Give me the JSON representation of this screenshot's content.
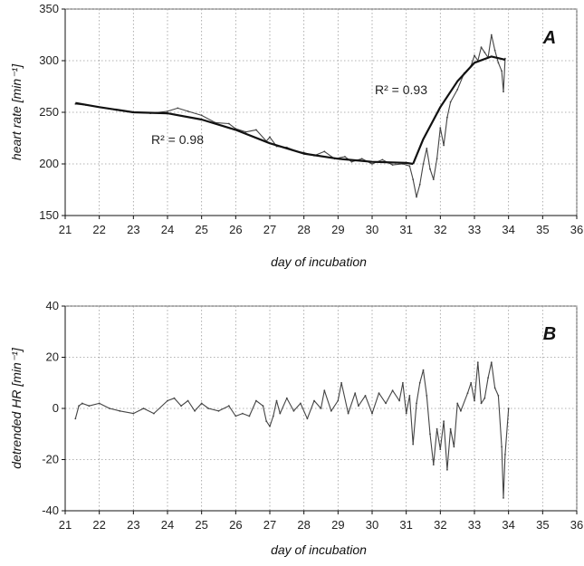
{
  "chart_data": [
    {
      "panel": "A",
      "type": "line",
      "xlabel": "day of incubation",
      "ylabel": "heart rate [min⁻¹]",
      "xlim": [
        21,
        36
      ],
      "ylim": [
        150,
        350
      ],
      "xticks": [
        21,
        22,
        23,
        24,
        25,
        26,
        27,
        28,
        29,
        30,
        31,
        32,
        33,
        34,
        35,
        36
      ],
      "yticks": [
        150,
        200,
        250,
        300,
        350
      ],
      "grid": true,
      "annotations": [
        "R² = 0.98",
        "R² = 0.93"
      ],
      "series": [
        {
          "role": "measured",
          "x": [
            21.3,
            21.6,
            22.0,
            22.5,
            23.0,
            23.5,
            24.0,
            24.3,
            24.6,
            25.0,
            25.4,
            25.8,
            26.0,
            26.3,
            26.6,
            26.9,
            27.0,
            27.2,
            27.5,
            27.8,
            28.0,
            28.3,
            28.6,
            28.9,
            29.2,
            29.4,
            29.7,
            30.0,
            30.3,
            30.6,
            30.9,
            31.1,
            31.2,
            31.3,
            31.4,
            31.5,
            31.6,
            31.7,
            31.8,
            31.9,
            32.0,
            32.1,
            32.2,
            32.3,
            32.5,
            32.7,
            32.9,
            33.0,
            33.1,
            33.2,
            33.3,
            33.4,
            33.5,
            33.6,
            33.7,
            33.8,
            33.85,
            33.9
          ],
          "y": [
            258,
            257,
            255,
            252,
            250,
            249,
            251,
            254,
            251,
            247,
            240,
            239,
            234,
            231,
            233,
            222,
            226,
            217,
            216,
            212,
            211,
            208,
            212,
            205,
            207,
            202,
            205,
            200,
            204,
            199,
            200,
            198,
            185,
            168,
            180,
            200,
            215,
            195,
            185,
            205,
            235,
            218,
            245,
            260,
            272,
            288,
            295,
            305,
            300,
            313,
            308,
            303,
            325,
            310,
            298,
            290,
            270,
            302
          ]
        },
        {
          "role": "fit",
          "x": [
            21.3,
            22.0,
            23.0,
            24.0,
            25.0,
            26.0,
            27.0,
            28.0,
            29.0,
            30.0,
            31.0,
            31.2
          ],
          "y": [
            259,
            255,
            250,
            249,
            243,
            233,
            220,
            210,
            205,
            202,
            201,
            200
          ]
        },
        {
          "role": "fit",
          "x": [
            31.2,
            31.5,
            32.0,
            32.5,
            33.0,
            33.5,
            33.9
          ],
          "y": [
            200,
            224,
            255,
            280,
            298,
            304,
            301
          ]
        }
      ]
    },
    {
      "panel": "B",
      "type": "line",
      "xlabel": "day of incubation",
      "ylabel": "detrended HR [min⁻¹]",
      "xlim": [
        21,
        36
      ],
      "ylim": [
        -40,
        40
      ],
      "xticks": [
        21,
        22,
        23,
        24,
        25,
        26,
        27,
        28,
        29,
        30,
        31,
        32,
        33,
        34,
        35,
        36
      ],
      "yticks": [
        -40,
        -20,
        0,
        20,
        40
      ],
      "grid": true,
      "series": [
        {
          "role": "residual",
          "x": [
            21.3,
            21.4,
            21.5,
            21.7,
            22.0,
            22.3,
            22.6,
            23.0,
            23.3,
            23.6,
            24.0,
            24.2,
            24.4,
            24.6,
            24.8,
            25.0,
            25.2,
            25.5,
            25.8,
            26.0,
            26.2,
            26.4,
            26.6,
            26.8,
            26.9,
            27.0,
            27.1,
            27.2,
            27.3,
            27.5,
            27.7,
            27.9,
            28.1,
            28.3,
            28.5,
            28.6,
            28.8,
            29.0,
            29.1,
            29.3,
            29.5,
            29.6,
            29.8,
            30.0,
            30.2,
            30.4,
            30.6,
            30.8,
            30.9,
            31.0,
            31.1,
            31.2,
            31.3,
            31.4,
            31.5,
            31.6,
            31.7,
            31.8,
            31.9,
            32.0,
            32.1,
            32.2,
            32.3,
            32.4,
            32.5,
            32.6,
            32.8,
            32.9,
            33.0,
            33.1,
            33.2,
            33.3,
            33.4,
            33.5,
            33.6,
            33.7,
            33.8,
            33.85,
            33.9,
            34.0
          ],
          "y": [
            -4,
            1,
            2,
            1,
            2,
            0,
            -1,
            -2,
            0,
            -2,
            3,
            4,
            1,
            3,
            -1,
            2,
            0,
            -1,
            1,
            -3,
            -2,
            -3,
            3,
            1,
            -5,
            -7,
            -3,
            3,
            -2,
            4,
            -1,
            2,
            -4,
            3,
            0,
            7,
            -1,
            3,
            10,
            -2,
            6,
            1,
            5,
            -2,
            6,
            2,
            7,
            3,
            10,
            -2,
            5,
            -14,
            2,
            10,
            15,
            5,
            -10,
            -22,
            -8,
            -16,
            -5,
            -24,
            -8,
            -15,
            2,
            -1,
            6,
            10,
            3,
            18,
            2,
            4,
            12,
            18,
            8,
            5,
            -15,
            -35,
            -18,
            0
          ]
        }
      ]
    }
  ],
  "panel_a": {
    "letter": "A",
    "ylabel": "heart rate [min⁻¹]",
    "xlabel": "day of incubation",
    "r2_left": "R² = 0.98",
    "r2_right": "R² = 0.93"
  },
  "panel_b": {
    "letter": "B",
    "ylabel": "detrended HR [min⁻¹]",
    "xlabel": "day of incubation"
  },
  "colors": {
    "data_line": "#444444",
    "fit_line": "#111111",
    "grid": "#9a9a9a"
  }
}
